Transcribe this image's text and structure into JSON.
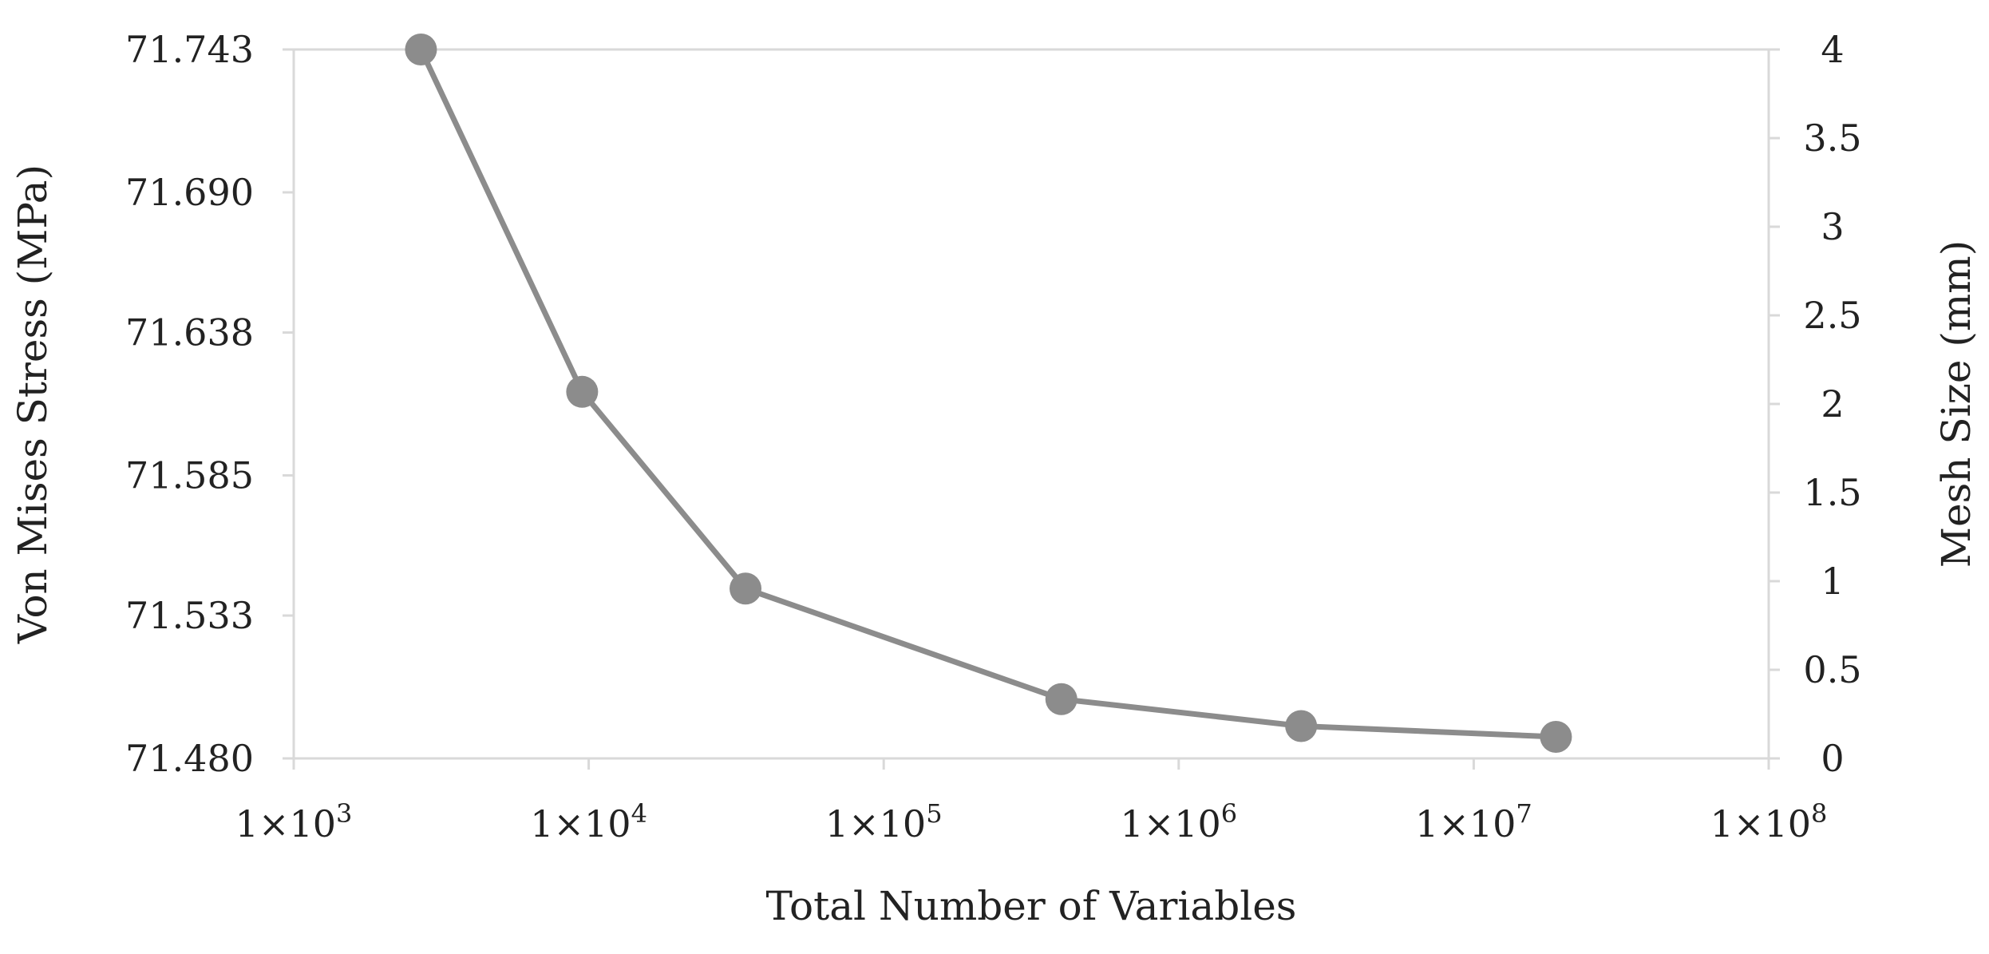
{
  "chart_data": {
    "type": "line",
    "title": "",
    "xlabel": "Total Number of Variables",
    "ylabel": "Von Mises Stress (MPa)",
    "y2label": "Mesh Size (mm)",
    "x_scale": "log",
    "xlim": [
      1000,
      100000000
    ],
    "ylim": [
      71.48,
      71.743
    ],
    "y2lim": [
      0,
      4
    ],
    "x_ticks": [
      1000,
      10000,
      100000,
      1000000,
      10000000,
      100000000
    ],
    "x_tick_labels": [
      {
        "base": "1×10",
        "exp": "3"
      },
      {
        "base": "1×10",
        "exp": "4"
      },
      {
        "base": "1×10",
        "exp": "5"
      },
      {
        "base": "1×10",
        "exp": "6"
      },
      {
        "base": "1×10",
        "exp": "7"
      },
      {
        "base": "1×10",
        "exp": "8"
      }
    ],
    "y_ticks": [
      71.48,
      71.533,
      71.585,
      71.638,
      71.69,
      71.743
    ],
    "y_tick_labels": [
      "71.480",
      "71.533",
      "71.585",
      "71.638",
      "71.690",
      "71.743"
    ],
    "y2_ticks": [
      0,
      0.5,
      1,
      1.5,
      2,
      2.5,
      3,
      3.5,
      4
    ],
    "y2_tick_labels": [
      "0",
      "0.5",
      "1",
      "1.5",
      "2",
      "2.5",
      "3",
      "3.5",
      "4"
    ],
    "grid": false,
    "legend": "none",
    "series": [
      {
        "color": "#8c8c8c",
        "x": [
          2700,
          9500,
          34000,
          400000,
          2600000,
          19000000
        ],
        "y": [
          71.743,
          71.616,
          71.543,
          71.502,
          71.492,
          71.488
        ]
      }
    ]
  }
}
